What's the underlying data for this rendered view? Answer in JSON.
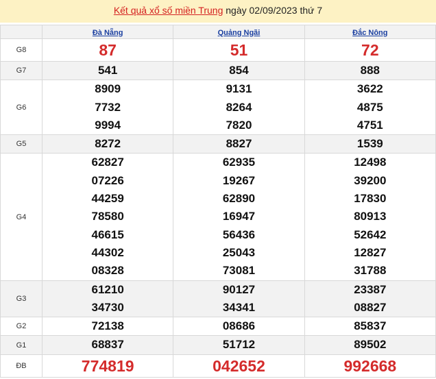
{
  "title": {
    "link": "Kết quả xổ số miền Trung",
    "rest": " ngày 02/09/2023 thứ 7"
  },
  "provinces": [
    "Đà Nẵng",
    "Quảng Ngãi",
    "Đắc Nông"
  ],
  "rows": [
    {
      "label": "G8",
      "big": true,
      "values": [
        [
          "87"
        ],
        [
          "51"
        ],
        [
          "72"
        ]
      ]
    },
    {
      "label": "G7",
      "values": [
        [
          "541"
        ],
        [
          "854"
        ],
        [
          "888"
        ]
      ]
    },
    {
      "label": "G6",
      "values": [
        [
          "8909",
          "7732",
          "9994"
        ],
        [
          "9131",
          "8264",
          "7820"
        ],
        [
          "3622",
          "4875",
          "4751"
        ]
      ]
    },
    {
      "label": "G5",
      "values": [
        [
          "8272"
        ],
        [
          "8827"
        ],
        [
          "1539"
        ]
      ]
    },
    {
      "label": "G4",
      "values": [
        [
          "62827",
          "07226",
          "44259",
          "78580",
          "46615",
          "44302",
          "08328"
        ],
        [
          "62935",
          "19267",
          "62890",
          "16947",
          "56436",
          "25043",
          "73081"
        ],
        [
          "12498",
          "39200",
          "17830",
          "80913",
          "52642",
          "12827",
          "31788"
        ]
      ]
    },
    {
      "label": "G3",
      "values": [
        [
          "61210",
          "34730"
        ],
        [
          "90127",
          "34341"
        ],
        [
          "23387",
          "08827"
        ]
      ]
    },
    {
      "label": "G2",
      "values": [
        [
          "72138"
        ],
        [
          "08686"
        ],
        [
          "85837"
        ]
      ]
    },
    {
      "label": "G1",
      "values": [
        [
          "68837"
        ],
        [
          "51712"
        ],
        [
          "89502"
        ]
      ]
    },
    {
      "label": "ĐB",
      "big": true,
      "values": [
        [
          "774819"
        ],
        [
          "042652"
        ],
        [
          "992668"
        ]
      ]
    }
  ],
  "colors": {
    "prize_highlight": "#d42b2b",
    "header_bg": "#fdf2c4",
    "province_link": "#1a3fa0"
  }
}
